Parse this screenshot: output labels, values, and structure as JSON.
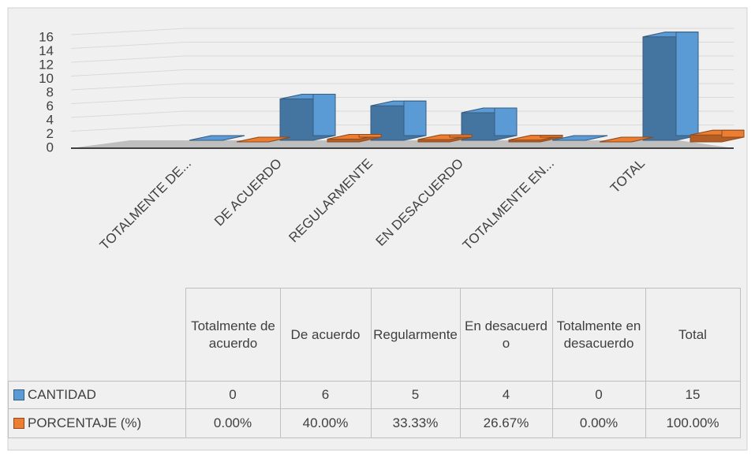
{
  "chart_data": {
    "type": "bar3d",
    "categories": [
      "TOTALMENTE DE...",
      "DE ACUERDO",
      "REGULARMENTE",
      "EN DESACUERDO",
      "TOTALMENTE EN...",
      "TOTAL"
    ],
    "table_headers": [
      "Totalmente de acuerdo",
      "De acuerdo",
      "Regularmente",
      "En desacuerdo",
      "Totalmente en desacuerdo",
      "Total"
    ],
    "series": [
      {
        "name": "CANTIDAD",
        "color": "#5b9bd5",
        "values": [
          0,
          6,
          5,
          4,
          0,
          15
        ]
      },
      {
        "name": "PORCENTAJE (%)",
        "color": "#ed7d31",
        "values": [
          0,
          0.4,
          0.3333,
          0.2667,
          0,
          1
        ],
        "value_labels": [
          "0.00%",
          "40.00%",
          "33.33%",
          "26.67%",
          "0.00%",
          "100.00%"
        ]
      }
    ],
    "ylim": [
      0,
      16
    ],
    "yticks": [
      0,
      2,
      4,
      6,
      8,
      10,
      12,
      14,
      16
    ],
    "grid": true
  }
}
